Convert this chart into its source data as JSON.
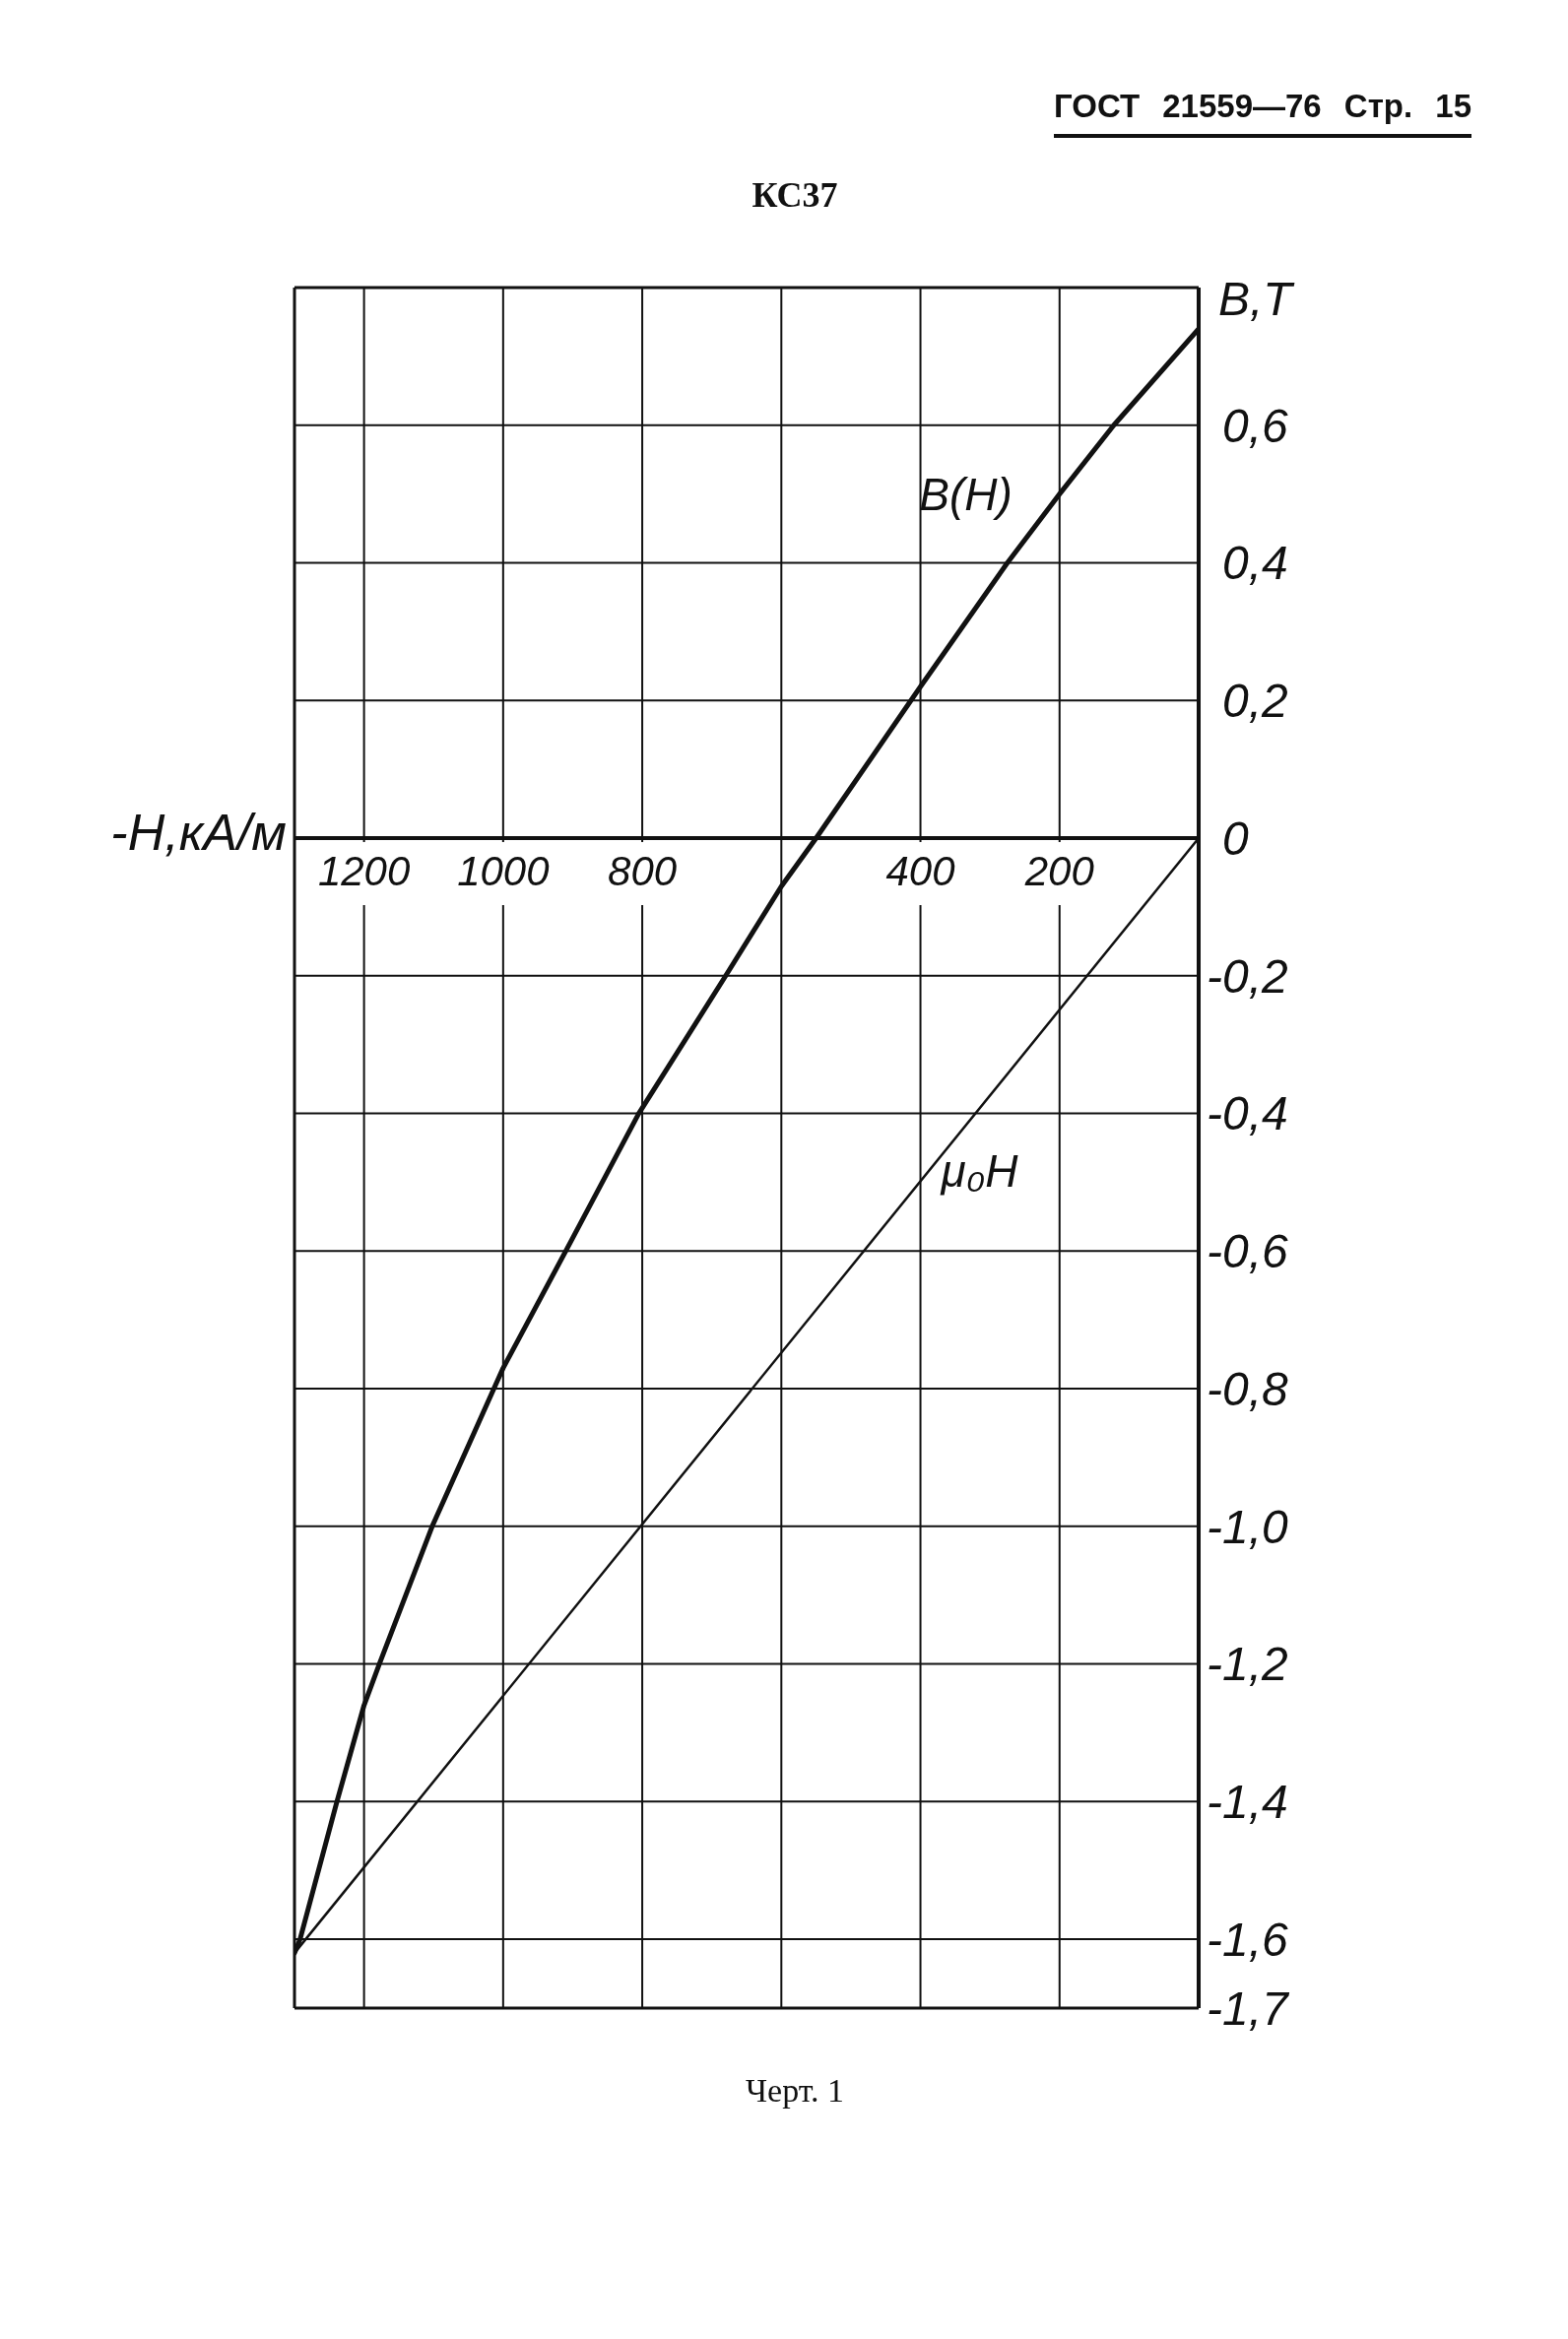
{
  "chart_data": {
    "type": "line",
    "title": "КС37",
    "xlabel": "-H,кА/м",
    "ylabel": "B,Т",
    "annotations": [
      "ГОСТ 21559—76 Стр. 15",
      "Черт. 1"
    ],
    "series": [
      {
        "name": "B(H)",
        "color": "#111111",
        "x": [
          0,
          122,
          200,
          275,
          400,
          550,
          600,
          680,
          805,
          910,
          1000,
          1102,
          1178,
          1200,
          1239,
          1292,
          1300
        ],
        "values": [
          0.74,
          0.6,
          0.5,
          0.4,
          0.22,
          0,
          -0.07,
          -0.2,
          -0.4,
          -0.6,
          -0.77,
          -1.0,
          -1.2,
          -1.26,
          -1.4,
          -1.6,
          -1.62
        ]
      },
      {
        "name": "μ₀H",
        "color": "#111111",
        "x": [
          0,
          1300
        ],
        "values": [
          0,
          -1.62
        ]
      }
    ],
    "xlim": [
      1300,
      0
    ],
    "xticks": [
      1200,
      1000,
      800,
      {
        "value": 600,
        "label": null
      },
      400,
      200
    ],
    "ylim": [
      -1.7,
      0.8
    ],
    "yticks": [
      {
        "value": 0.6,
        "label": "0,6"
      },
      {
        "value": 0.4,
        "label": "0,4"
      },
      {
        "value": 0.2,
        "label": "0,2"
      },
      0,
      {
        "value": -0.2,
        "label": "-0,2"
      },
      {
        "value": -0.4,
        "label": "-0,4"
      },
      {
        "value": -0.6,
        "label": "-0,6"
      },
      {
        "value": -0.8,
        "label": "-0,8"
      },
      {
        "value": -1.0,
        "label": "-1,0"
      },
      {
        "value": -1.2,
        "label": "-1,2"
      },
      {
        "value": -1.4,
        "label": "-1,4"
      },
      {
        "value": -1.6,
        "label": "-1,6"
      },
      {
        "value": -1.7,
        "label": "-1,7"
      }
    ],
    "grid": true
  }
}
